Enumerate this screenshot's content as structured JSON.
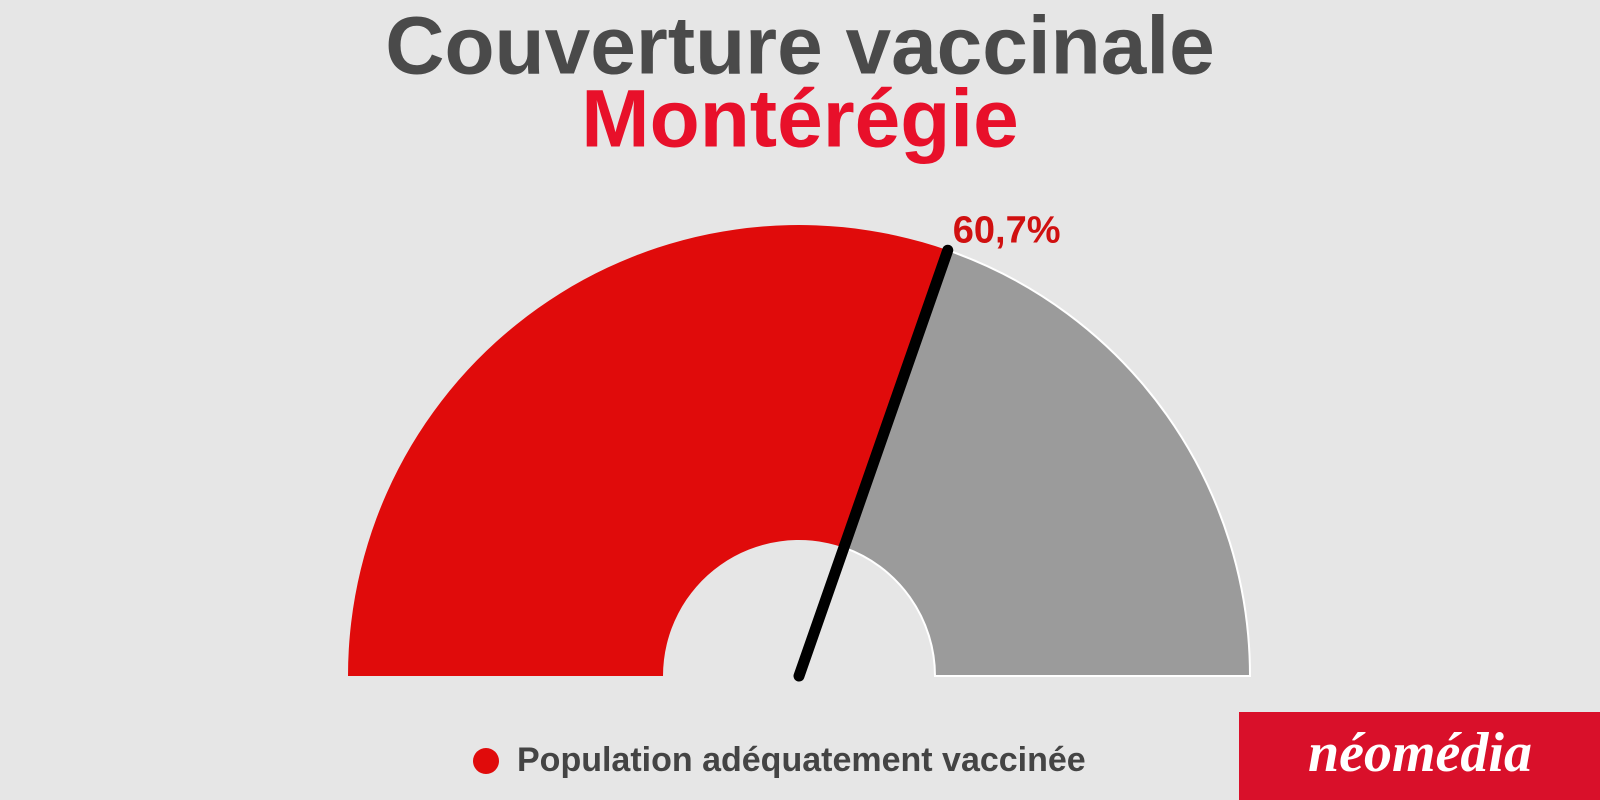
{
  "chart_data": {
    "type": "gauge",
    "title": "Couverture vaccinale",
    "subtitle": "Montérégie",
    "series": [
      {
        "name": "Population adéquatement vaccinée",
        "color": "#e00b0b",
        "values": [
          60.7
        ],
        "value_labels": [
          "60,7%"
        ]
      }
    ],
    "rest_color": "#9b9b9b",
    "ylim": [
      0,
      100
    ]
  },
  "logo": "néomédia"
}
